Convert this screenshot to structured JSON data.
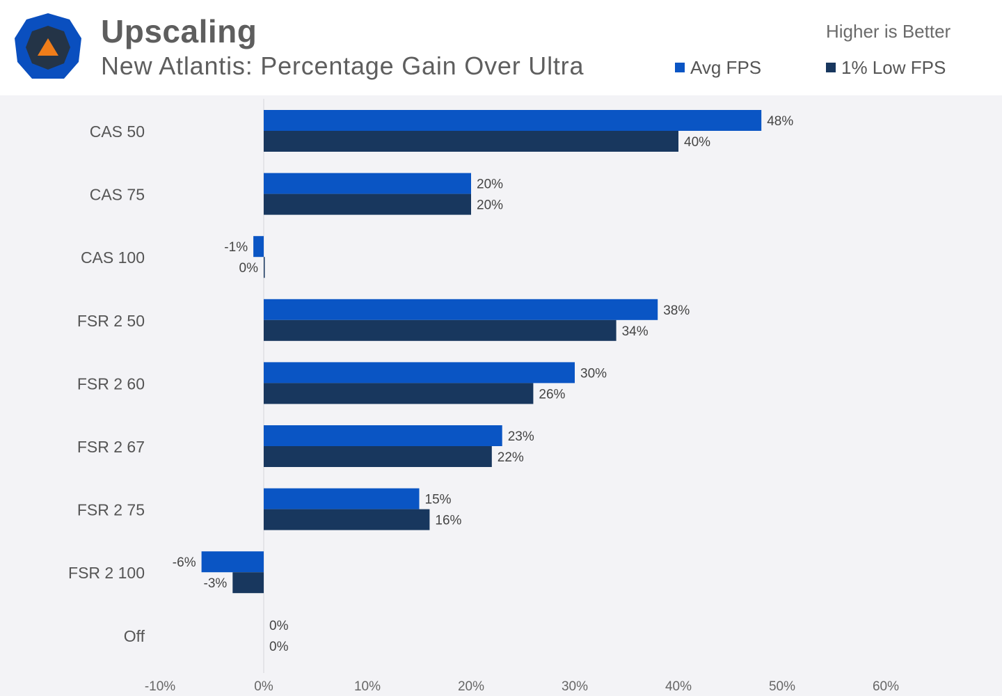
{
  "header": {
    "title": "Upscaling",
    "subtitle": "New Atlantis: Percentage Gain Over Ultra",
    "note": "Higher is Better"
  },
  "logo": {
    "outer_color": "#0a4fbf",
    "inner_color": "#243447",
    "accent_color": "#f07d1a"
  },
  "colors": {
    "avg": "#0a55c4",
    "low": "#18375e",
    "background": "#f3f3f6"
  },
  "chart_data": {
    "type": "bar",
    "orientation": "horizontal",
    "categories": [
      "CAS 50",
      "CAS 75",
      "CAS 100",
      "FSR 2 50",
      "FSR 2 60",
      "FSR 2 67",
      "FSR 2 75",
      "FSR 2 100",
      "Off"
    ],
    "series": [
      {
        "name": "Avg FPS",
        "values": [
          48,
          20,
          -1,
          38,
          30,
          23,
          15,
          -6,
          0
        ]
      },
      {
        "name": "1% Low FPS",
        "values": [
          40,
          20,
          0,
          34,
          26,
          22,
          16,
          -3,
          0
        ]
      }
    ],
    "value_labels": [
      [
        "48%",
        "20%",
        "-1%",
        "38%",
        "30%",
        "23%",
        "15%",
        "-6%",
        "0%"
      ],
      [
        "40%",
        "20%",
        "0%",
        "34%",
        "26%",
        "22%",
        "16%",
        "-3%",
        "0%"
      ]
    ],
    "xlim": [
      -10,
      60
    ],
    "xticks": [
      "-10%",
      "0%",
      "10%",
      "20%",
      "30%",
      "40%",
      "50%",
      "60%"
    ],
    "legend_position": "top-right",
    "grid": false
  }
}
